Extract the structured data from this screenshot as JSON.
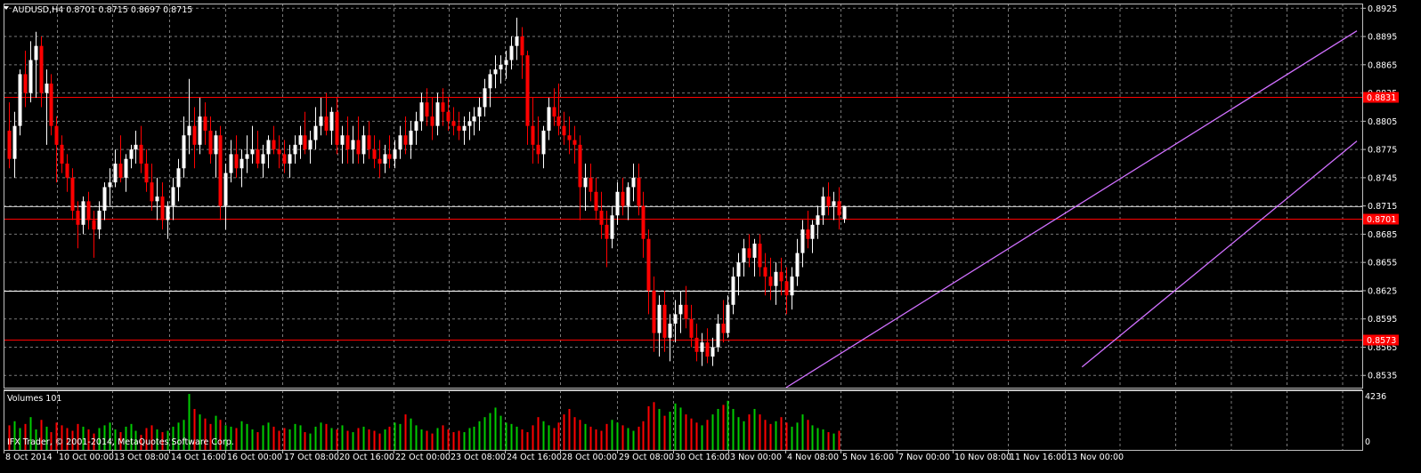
{
  "chart_data": {
    "type": "candlestick",
    "symbol_info": "AUDUSD,H4  0.8701 0.8715 0.8697 0.8715",
    "ylim": [
      0.8522,
      0.893
    ],
    "y_ticks": [
      "0.8925",
      "0.8895",
      "0.8865",
      "0.8835",
      "0.8805",
      "0.8775",
      "0.8745",
      "0.8715",
      "0.8685",
      "0.8655",
      "0.8625",
      "0.8595",
      "0.8565",
      "0.8535"
    ],
    "x_labels": [
      "8 Oct 2014",
      "10 Oct 00:00",
      "13 Oct 08:00",
      "14 Oct 16:00",
      "16 Oct 00:00",
      "17 Oct 08:00",
      "20 Oct 16:00",
      "22 Oct 00:00",
      "23 Oct 08:00",
      "24 Oct 16:00",
      "28 Oct 00:00",
      "29 Oct 08:00",
      "30 Oct 16:00",
      "3 Nov 00:00",
      "4 Nov 08:00",
      "5 Nov 16:00",
      "7 Nov 00:00",
      "10 Nov 08:00",
      "11 Nov 16:00",
      "13 Nov 00:00"
    ],
    "horizontal_levels": [
      {
        "label": "0.8831",
        "value": 0.8831,
        "color": "#ff0000",
        "boxed": true
      },
      {
        "label": "0.8715",
        "value": 0.8715,
        "color": "#c0c0c0",
        "boxed": false
      },
      {
        "label": "0.8701",
        "value": 0.8701,
        "color": "#ff0000",
        "boxed": true
      },
      {
        "label": "0.8625",
        "value": 0.8625,
        "color": "#ffffff",
        "boxed": false
      },
      {
        "label": "0.8573",
        "value": 0.8573,
        "color": "#ff0000",
        "boxed": true
      }
    ],
    "channel_lines": [
      {
        "color": "#d070ff",
        "x1_index": 147,
        "y1": 0.8522,
        "x2_index": 255,
        "y2": 0.8901
      },
      {
        "color": "#d070ff",
        "x1_index": 203,
        "y1": 0.8544,
        "x2_index": 255,
        "y2": 0.8784
      }
    ],
    "candles": [
      {
        "o": 0.8795,
        "h": 0.8825,
        "l": 0.8755,
        "c": 0.8765
      },
      {
        "o": 0.8765,
        "h": 0.8815,
        "l": 0.8745,
        "c": 0.88
      },
      {
        "o": 0.88,
        "h": 0.886,
        "l": 0.879,
        "c": 0.8855
      },
      {
        "o": 0.8855,
        "h": 0.888,
        "l": 0.882,
        "c": 0.8835
      },
      {
        "o": 0.8835,
        "h": 0.889,
        "l": 0.8825,
        "c": 0.887
      },
      {
        "o": 0.887,
        "h": 0.89,
        "l": 0.883,
        "c": 0.8885
      },
      {
        "o": 0.8885,
        "h": 0.8895,
        "l": 0.882,
        "c": 0.8835
      },
      {
        "o": 0.8835,
        "h": 0.886,
        "l": 0.878,
        "c": 0.8845
      },
      {
        "o": 0.8845,
        "h": 0.8855,
        "l": 0.879,
        "c": 0.88
      },
      {
        "o": 0.88,
        "h": 0.881,
        "l": 0.874,
        "c": 0.878
      },
      {
        "o": 0.878,
        "h": 0.879,
        "l": 0.875,
        "c": 0.876
      },
      {
        "o": 0.876,
        "h": 0.877,
        "l": 0.873,
        "c": 0.8745
      },
      {
        "o": 0.8745,
        "h": 0.8755,
        "l": 0.87,
        "c": 0.871
      },
      {
        "o": 0.871,
        "h": 0.872,
        "l": 0.867,
        "c": 0.8695
      },
      {
        "o": 0.8695,
        "h": 0.8725,
        "l": 0.8685,
        "c": 0.872
      },
      {
        "o": 0.872,
        "h": 0.873,
        "l": 0.869,
        "c": 0.87
      },
      {
        "o": 0.87,
        "h": 0.871,
        "l": 0.866,
        "c": 0.869
      },
      {
        "o": 0.869,
        "h": 0.872,
        "l": 0.868,
        "c": 0.871
      },
      {
        "o": 0.871,
        "h": 0.874,
        "l": 0.87,
        "c": 0.8735
      },
      {
        "o": 0.8735,
        "h": 0.8755,
        "l": 0.8715,
        "c": 0.874
      },
      {
        "o": 0.874,
        "h": 0.8775,
        "l": 0.8735,
        "c": 0.876
      },
      {
        "o": 0.876,
        "h": 0.879,
        "l": 0.874,
        "c": 0.8745
      },
      {
        "o": 0.8745,
        "h": 0.877,
        "l": 0.873,
        "c": 0.8765
      },
      {
        "o": 0.8765,
        "h": 0.878,
        "l": 0.8755,
        "c": 0.8775
      },
      {
        "o": 0.8775,
        "h": 0.8795,
        "l": 0.876,
        "c": 0.878
      },
      {
        "o": 0.878,
        "h": 0.88,
        "l": 0.875,
        "c": 0.876
      },
      {
        "o": 0.876,
        "h": 0.8775,
        "l": 0.873,
        "c": 0.874
      },
      {
        "o": 0.874,
        "h": 0.876,
        "l": 0.871,
        "c": 0.872
      },
      {
        "o": 0.872,
        "h": 0.8745,
        "l": 0.87,
        "c": 0.8725
      },
      {
        "o": 0.8725,
        "h": 0.874,
        "l": 0.869,
        "c": 0.87
      },
      {
        "o": 0.87,
        "h": 0.872,
        "l": 0.868,
        "c": 0.8715
      },
      {
        "o": 0.8715,
        "h": 0.8745,
        "l": 0.87,
        "c": 0.8735
      },
      {
        "o": 0.8735,
        "h": 0.8765,
        "l": 0.872,
        "c": 0.8755
      },
      {
        "o": 0.8755,
        "h": 0.881,
        "l": 0.8745,
        "c": 0.879
      },
      {
        "o": 0.879,
        "h": 0.885,
        "l": 0.877,
        "c": 0.88
      },
      {
        "o": 0.88,
        "h": 0.882,
        "l": 0.8755,
        "c": 0.878
      },
      {
        "o": 0.878,
        "h": 0.883,
        "l": 0.877,
        "c": 0.881
      },
      {
        "o": 0.881,
        "h": 0.8825,
        "l": 0.878,
        "c": 0.8795
      },
      {
        "o": 0.8795,
        "h": 0.881,
        "l": 0.876,
        "c": 0.877
      },
      {
        "o": 0.877,
        "h": 0.8795,
        "l": 0.8745,
        "c": 0.879
      },
      {
        "o": 0.879,
        "h": 0.88,
        "l": 0.87,
        "c": 0.8715
      },
      {
        "o": 0.8715,
        "h": 0.876,
        "l": 0.869,
        "c": 0.875
      },
      {
        "o": 0.875,
        "h": 0.8785,
        "l": 0.874,
        "c": 0.877
      },
      {
        "o": 0.877,
        "h": 0.879,
        "l": 0.8745,
        "c": 0.8755
      },
      {
        "o": 0.8755,
        "h": 0.8775,
        "l": 0.8735,
        "c": 0.8765
      },
      {
        "o": 0.8765,
        "h": 0.879,
        "l": 0.875,
        "c": 0.877
      },
      {
        "o": 0.877,
        "h": 0.88,
        "l": 0.876,
        "c": 0.8775
      },
      {
        "o": 0.8775,
        "h": 0.8795,
        "l": 0.8755,
        "c": 0.876
      },
      {
        "o": 0.876,
        "h": 0.878,
        "l": 0.8745,
        "c": 0.877
      },
      {
        "o": 0.877,
        "h": 0.879,
        "l": 0.8755,
        "c": 0.8785
      },
      {
        "o": 0.8785,
        "h": 0.88,
        "l": 0.877,
        "c": 0.8775
      },
      {
        "o": 0.8775,
        "h": 0.879,
        "l": 0.8755,
        "c": 0.877
      },
      {
        "o": 0.877,
        "h": 0.8785,
        "l": 0.875,
        "c": 0.876
      },
      {
        "o": 0.876,
        "h": 0.878,
        "l": 0.8745,
        "c": 0.877
      },
      {
        "o": 0.877,
        "h": 0.879,
        "l": 0.876,
        "c": 0.878
      },
      {
        "o": 0.878,
        "h": 0.88,
        "l": 0.8765,
        "c": 0.879
      },
      {
        "o": 0.879,
        "h": 0.8815,
        "l": 0.877,
        "c": 0.8775
      },
      {
        "o": 0.8775,
        "h": 0.8795,
        "l": 0.876,
        "c": 0.8785
      },
      {
        "o": 0.8785,
        "h": 0.882,
        "l": 0.8775,
        "c": 0.88
      },
      {
        "o": 0.88,
        "h": 0.883,
        "l": 0.879,
        "c": 0.881
      },
      {
        "o": 0.881,
        "h": 0.8835,
        "l": 0.879,
        "c": 0.8795
      },
      {
        "o": 0.8795,
        "h": 0.882,
        "l": 0.878,
        "c": 0.8815
      },
      {
        "o": 0.8815,
        "h": 0.883,
        "l": 0.877,
        "c": 0.878
      },
      {
        "o": 0.878,
        "h": 0.88,
        "l": 0.876,
        "c": 0.879
      },
      {
        "o": 0.879,
        "h": 0.881,
        "l": 0.876,
        "c": 0.8775
      },
      {
        "o": 0.8775,
        "h": 0.88,
        "l": 0.876,
        "c": 0.8785
      },
      {
        "o": 0.8785,
        "h": 0.881,
        "l": 0.876,
        "c": 0.877
      },
      {
        "o": 0.877,
        "h": 0.88,
        "l": 0.876,
        "c": 0.879
      },
      {
        "o": 0.879,
        "h": 0.8805,
        "l": 0.8765,
        "c": 0.8775
      },
      {
        "o": 0.8775,
        "h": 0.879,
        "l": 0.8755,
        "c": 0.8765
      },
      {
        "o": 0.8765,
        "h": 0.8785,
        "l": 0.8745,
        "c": 0.876
      },
      {
        "o": 0.876,
        "h": 0.878,
        "l": 0.875,
        "c": 0.877
      },
      {
        "o": 0.877,
        "h": 0.879,
        "l": 0.8755,
        "c": 0.8765
      },
      {
        "o": 0.8765,
        "h": 0.8785,
        "l": 0.8755,
        "c": 0.8775
      },
      {
        "o": 0.8775,
        "h": 0.88,
        "l": 0.8765,
        "c": 0.879
      },
      {
        "o": 0.879,
        "h": 0.881,
        "l": 0.877,
        "c": 0.878
      },
      {
        "o": 0.878,
        "h": 0.8805,
        "l": 0.8765,
        "c": 0.8795
      },
      {
        "o": 0.8795,
        "h": 0.8815,
        "l": 0.878,
        "c": 0.8805
      },
      {
        "o": 0.8805,
        "h": 0.8835,
        "l": 0.8795,
        "c": 0.8825
      },
      {
        "o": 0.8825,
        "h": 0.884,
        "l": 0.88,
        "c": 0.881
      },
      {
        "o": 0.881,
        "h": 0.883,
        "l": 0.8785,
        "c": 0.88
      },
      {
        "o": 0.88,
        "h": 0.8835,
        "l": 0.879,
        "c": 0.8825
      },
      {
        "o": 0.8825,
        "h": 0.884,
        "l": 0.88,
        "c": 0.8815
      },
      {
        "o": 0.8815,
        "h": 0.883,
        "l": 0.8795,
        "c": 0.8805
      },
      {
        "o": 0.8805,
        "h": 0.882,
        "l": 0.879,
        "c": 0.88
      },
      {
        "o": 0.88,
        "h": 0.8815,
        "l": 0.8785,
        "c": 0.8795
      },
      {
        "o": 0.8795,
        "h": 0.881,
        "l": 0.878,
        "c": 0.88
      },
      {
        "o": 0.88,
        "h": 0.8815,
        "l": 0.8785,
        "c": 0.8805
      },
      {
        "o": 0.8805,
        "h": 0.882,
        "l": 0.879,
        "c": 0.881
      },
      {
        "o": 0.881,
        "h": 0.883,
        "l": 0.8795,
        "c": 0.882
      },
      {
        "o": 0.882,
        "h": 0.885,
        "l": 0.881,
        "c": 0.884
      },
      {
        "o": 0.884,
        "h": 0.886,
        "l": 0.882,
        "c": 0.8855
      },
      {
        "o": 0.8855,
        "h": 0.8875,
        "l": 0.884,
        "c": 0.886
      },
      {
        "o": 0.886,
        "h": 0.8875,
        "l": 0.8845,
        "c": 0.8865
      },
      {
        "o": 0.8865,
        "h": 0.888,
        "l": 0.885,
        "c": 0.887
      },
      {
        "o": 0.887,
        "h": 0.8895,
        "l": 0.886,
        "c": 0.8885
      },
      {
        "o": 0.8885,
        "h": 0.8915,
        "l": 0.887,
        "c": 0.8895
      },
      {
        "o": 0.8895,
        "h": 0.8905,
        "l": 0.885,
        "c": 0.8875
      },
      {
        "o": 0.8875,
        "h": 0.888,
        "l": 0.878,
        "c": 0.88
      },
      {
        "o": 0.88,
        "h": 0.883,
        "l": 0.876,
        "c": 0.878
      },
      {
        "o": 0.878,
        "h": 0.881,
        "l": 0.876,
        "c": 0.877
      },
      {
        "o": 0.877,
        "h": 0.88,
        "l": 0.8755,
        "c": 0.8795
      },
      {
        "o": 0.8795,
        "h": 0.883,
        "l": 0.8785,
        "c": 0.882
      },
      {
        "o": 0.882,
        "h": 0.884,
        "l": 0.88,
        "c": 0.881
      },
      {
        "o": 0.881,
        "h": 0.8845,
        "l": 0.879,
        "c": 0.88
      },
      {
        "o": 0.88,
        "h": 0.8815,
        "l": 0.878,
        "c": 0.879
      },
      {
        "o": 0.879,
        "h": 0.881,
        "l": 0.877,
        "c": 0.8785
      },
      {
        "o": 0.8785,
        "h": 0.88,
        "l": 0.876,
        "c": 0.878
      },
      {
        "o": 0.878,
        "h": 0.879,
        "l": 0.87,
        "c": 0.8735
      },
      {
        "o": 0.8735,
        "h": 0.876,
        "l": 0.871,
        "c": 0.8745
      },
      {
        "o": 0.8745,
        "h": 0.876,
        "l": 0.872,
        "c": 0.873
      },
      {
        "o": 0.873,
        "h": 0.8745,
        "l": 0.87,
        "c": 0.871
      },
      {
        "o": 0.871,
        "h": 0.873,
        "l": 0.868,
        "c": 0.8695
      },
      {
        "o": 0.8695,
        "h": 0.871,
        "l": 0.865,
        "c": 0.868
      },
      {
        "o": 0.868,
        "h": 0.8715,
        "l": 0.867,
        "c": 0.8705
      },
      {
        "o": 0.8705,
        "h": 0.874,
        "l": 0.8695,
        "c": 0.873
      },
      {
        "o": 0.873,
        "h": 0.8745,
        "l": 0.8705,
        "c": 0.8715
      },
      {
        "o": 0.8715,
        "h": 0.874,
        "l": 0.87,
        "c": 0.8735
      },
      {
        "o": 0.8735,
        "h": 0.876,
        "l": 0.872,
        "c": 0.8745
      },
      {
        "o": 0.8745,
        "h": 0.876,
        "l": 0.8705,
        "c": 0.8715
      },
      {
        "o": 0.8715,
        "h": 0.873,
        "l": 0.866,
        "c": 0.868
      },
      {
        "o": 0.868,
        "h": 0.869,
        "l": 0.86,
        "c": 0.8625
      },
      {
        "o": 0.8625,
        "h": 0.864,
        "l": 0.856,
        "c": 0.858
      },
      {
        "o": 0.858,
        "h": 0.862,
        "l": 0.8555,
        "c": 0.861
      },
      {
        "o": 0.861,
        "h": 0.8625,
        "l": 0.856,
        "c": 0.8575
      },
      {
        "o": 0.8575,
        "h": 0.86,
        "l": 0.855,
        "c": 0.859
      },
      {
        "o": 0.859,
        "h": 0.8615,
        "l": 0.857,
        "c": 0.86
      },
      {
        "o": 0.86,
        "h": 0.8625,
        "l": 0.858,
        "c": 0.861
      },
      {
        "o": 0.861,
        "h": 0.863,
        "l": 0.8585,
        "c": 0.8595
      },
      {
        "o": 0.8595,
        "h": 0.861,
        "l": 0.8565,
        "c": 0.8575
      },
      {
        "o": 0.8575,
        "h": 0.859,
        "l": 0.855,
        "c": 0.856
      },
      {
        "o": 0.856,
        "h": 0.858,
        "l": 0.8545,
        "c": 0.857
      },
      {
        "o": 0.857,
        "h": 0.8585,
        "l": 0.8548,
        "c": 0.8555
      },
      {
        "o": 0.8555,
        "h": 0.8575,
        "l": 0.8545,
        "c": 0.8565
      },
      {
        "o": 0.8565,
        "h": 0.86,
        "l": 0.856,
        "c": 0.859
      },
      {
        "o": 0.859,
        "h": 0.8615,
        "l": 0.857,
        "c": 0.858
      },
      {
        "o": 0.858,
        "h": 0.862,
        "l": 0.8575,
        "c": 0.861
      },
      {
        "o": 0.861,
        "h": 0.865,
        "l": 0.86,
        "c": 0.864
      },
      {
        "o": 0.864,
        "h": 0.8665,
        "l": 0.862,
        "c": 0.8655
      },
      {
        "o": 0.8655,
        "h": 0.868,
        "l": 0.864,
        "c": 0.867
      },
      {
        "o": 0.867,
        "h": 0.8685,
        "l": 0.865,
        "c": 0.866
      },
      {
        "o": 0.866,
        "h": 0.868,
        "l": 0.864,
        "c": 0.8675
      },
      {
        "o": 0.8675,
        "h": 0.8685,
        "l": 0.864,
        "c": 0.865
      },
      {
        "o": 0.865,
        "h": 0.8665,
        "l": 0.862,
        "c": 0.864
      },
      {
        "o": 0.864,
        "h": 0.866,
        "l": 0.8615,
        "c": 0.863
      },
      {
        "o": 0.863,
        "h": 0.8655,
        "l": 0.861,
        "c": 0.8645
      },
      {
        "o": 0.8645,
        "h": 0.866,
        "l": 0.862,
        "c": 0.8635
      },
      {
        "o": 0.8635,
        "h": 0.865,
        "l": 0.86,
        "c": 0.862
      },
      {
        "o": 0.862,
        "h": 0.865,
        "l": 0.8605,
        "c": 0.864
      },
      {
        "o": 0.864,
        "h": 0.868,
        "l": 0.863,
        "c": 0.8665
      },
      {
        "o": 0.8665,
        "h": 0.87,
        "l": 0.865,
        "c": 0.869
      },
      {
        "o": 0.869,
        "h": 0.871,
        "l": 0.867,
        "c": 0.868
      },
      {
        "o": 0.868,
        "h": 0.87,
        "l": 0.8665,
        "c": 0.8695
      },
      {
        "o": 0.8695,
        "h": 0.8715,
        "l": 0.868,
        "c": 0.8705
      },
      {
        "o": 0.8705,
        "h": 0.8735,
        "l": 0.8695,
        "c": 0.8725
      },
      {
        "o": 0.8725,
        "h": 0.874,
        "l": 0.8705,
        "c": 0.8715
      },
      {
        "o": 0.8715,
        "h": 0.873,
        "l": 0.87,
        "c": 0.872
      },
      {
        "o": 0.872,
        "h": 0.8735,
        "l": 0.869,
        "c": 0.8705
      },
      {
        "o": 0.8701,
        "h": 0.8715,
        "l": 0.8697,
        "c": 0.8715
      }
    ],
    "volume": {
      "label": "Volumes 101",
      "y_tick_labels": [
        "4236",
        "0"
      ],
      "max": 4236,
      "values": [
        1800,
        2100,
        1600,
        1900,
        2400,
        1500,
        2200,
        1700,
        1300,
        2000,
        1800,
        1600,
        1400,
        1900,
        1700,
        1500,
        1200,
        1600,
        1800,
        2000,
        1500,
        1300,
        1700,
        1900,
        1400,
        1100,
        1600,
        1800,
        1500,
        1300,
        1400,
        1700,
        2000,
        2200,
        4100,
        3000,
        2600,
        2300,
        1900,
        2500,
        2200,
        1800,
        1700,
        1600,
        2100,
        1900,
        1500,
        1300,
        1800,
        2000,
        1700,
        1400,
        1600,
        1500,
        1900,
        1800,
        1300,
        1200,
        1700,
        2000,
        1900,
        1600,
        1500,
        1800,
        1400,
        1300,
        1600,
        1700,
        1500,
        1400,
        1200,
        1500,
        1700,
        2000,
        1900,
        2600,
        2300,
        1800,
        1500,
        1400,
        1200,
        1600,
        1800,
        1500,
        1300,
        1400,
        1300,
        1600,
        1700,
        2100,
        2400,
        2700,
        3100,
        2500,
        2000,
        1900,
        1700,
        1500,
        1300,
        1800,
        2400,
        2100,
        1800,
        1600,
        2000,
        2600,
        3000,
        2400,
        2200,
        1900,
        1700,
        1500,
        1400,
        1900,
        2200,
        2000,
        1800,
        1600,
        1400,
        1700,
        2100,
        3200,
        3500,
        3000,
        2500,
        2800,
        3400,
        3100,
        2600,
        2300,
        2000,
        1800,
        2200,
        2600,
        3000,
        3300,
        3600,
        3000,
        2400,
        2100,
        2600,
        3000,
        2600,
        2200,
        1900,
        2100,
        2400,
        2000,
        1700,
        2000,
        2600,
        2200,
        1800,
        1600,
        1500,
        1300,
        1200,
        1400
      ]
    },
    "watermark": "IFX Trader, © 2001-2014, MetaQuotes Software Corp.",
    "colors": {
      "background": "#000000",
      "bull": "#ffffff",
      "bear": "#ff0000",
      "grid": "#7a7a7a",
      "axis": "#c0c0c0",
      "vol_up": "#00cc00",
      "vol_down": "#ff0000",
      "channel": "#d070ff"
    }
  }
}
